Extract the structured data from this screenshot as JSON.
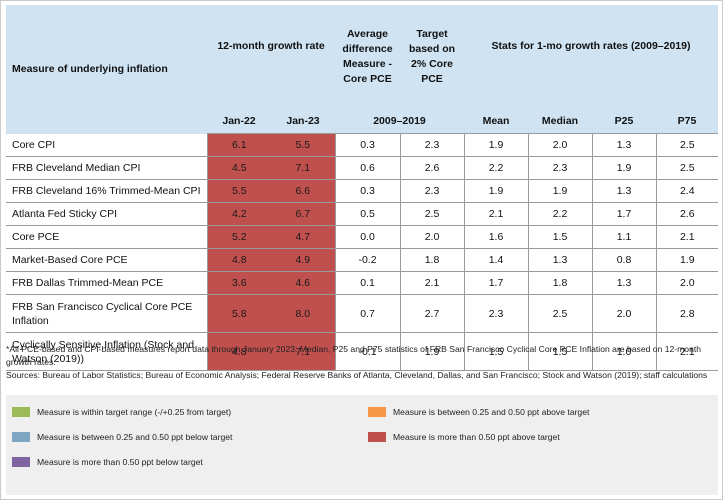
{
  "header": {
    "measure_col": "Measure of underlying inflation",
    "growth_col": "12-month growth rate",
    "avg_diff_col": "Average difference Measure - Core PCE",
    "target_col": "Target based on 2% Core PCE",
    "stats_col": "Stats for 1-mo growth rates (2009–2019)",
    "sub": {
      "jan22": "Jan-22",
      "jan23": "Jan-23",
      "period": "2009–2019",
      "mean": "Mean",
      "median": "Median",
      "p25": "P25",
      "p75": "P75"
    }
  },
  "rows": [
    {
      "name": "Core CPI",
      "jan22": "6.1",
      "jan23": "5.5",
      "avg_diff": "0.3",
      "target": "2.3",
      "mean": "1.9",
      "median": "2.0",
      "p25": "1.3",
      "p75": "2.5"
    },
    {
      "name": "FRB Cleveland Median CPI",
      "jan22": "4.5",
      "jan23": "7.1",
      "avg_diff": "0.6",
      "target": "2.6",
      "mean": "2.2",
      "median": "2.3",
      "p25": "1.9",
      "p75": "2.5"
    },
    {
      "name": "FRB Cleveland 16% Trimmed-Mean CPI",
      "jan22": "5.5",
      "jan23": "6.6",
      "avg_diff": "0.3",
      "target": "2.3",
      "mean": "1.9",
      "median": "1.9",
      "p25": "1.3",
      "p75": "2.4"
    },
    {
      "name": "Atlanta Fed Sticky CPI",
      "jan22": "4.2",
      "jan23": "6.7",
      "avg_diff": "0.5",
      "target": "2.5",
      "mean": "2.1",
      "median": "2.2",
      "p25": "1.7",
      "p75": "2.6"
    },
    {
      "name": "Core PCE",
      "jan22": "5.2",
      "jan23": "4.7",
      "avg_diff": "0.0",
      "target": "2.0",
      "mean": "1.6",
      "median": "1.5",
      "p25": "1.1",
      "p75": "2.1"
    },
    {
      "name": "Market-Based Core PCE",
      "jan22": "4.8",
      "jan23": "4.9",
      "avg_diff": "-0.2",
      "target": "1.8",
      "mean": "1.4",
      "median": "1.3",
      "p25": "0.8",
      "p75": "1.9"
    },
    {
      "name": "FRB Dallas Trimmed-Mean PCE",
      "jan22": "3.6",
      "jan23": "4.6",
      "avg_diff": "0.1",
      "target": "2.1",
      "mean": "1.7",
      "median": "1.8",
      "p25": "1.3",
      "p75": "2.0"
    },
    {
      "name": "FRB San Francisco Cyclical Core PCE Inflation",
      "jan22": "5.8",
      "jan23": "8.0",
      "avg_diff": "0.7",
      "target": "2.7",
      "mean": "2.3",
      "median": "2.5",
      "p25": "2.0",
      "p75": "2.8"
    },
    {
      "name": "Cyclically Sensitive Inflation (Stock and Watson (2019))",
      "jan22": "4.8",
      "jan23": "7.1",
      "avg_diff": "-0.1",
      "target": "1.9",
      "mean": "1.5",
      "median": "1.5",
      "p25": "1.0",
      "p75": "2.1"
    }
  ],
  "notes": {
    "footnote": "*All PCE-based and CPI-based measures report data through January 2023. Median, P25 and P75 statistics of FRB San Francisco Cyclical Core PCE Inflation are based on 12-month growth rates.",
    "sources": "Sources: Bureau of Labor Statistics; Bureau of Economic Analysis; Federal Reserve Banks of Atlanta, Cleveland, Dallas, and San Francisco; Stock and Watson (2019); staff calculations"
  },
  "legend": [
    {
      "label": "Measure is within target range (-/+0.25 from target)",
      "color": "#9bbb59"
    },
    {
      "label": "Measure is between 0.25 and 0.50 ppt above target",
      "color": "#f79646"
    },
    {
      "label": "Measure is between 0.25 and 0.50 ppt below target",
      "color": "#7ea6c2"
    },
    {
      "label": "Measure is more than 0.50 ppt above target",
      "color": "#c0504d"
    },
    {
      "label": "Measure is more than 0.50 ppt below target",
      "color": "#8064a2"
    }
  ],
  "colors": {
    "header_bg": "#cfe3f3",
    "above_target": "#c0504d",
    "legend_bg": "#efefef"
  }
}
